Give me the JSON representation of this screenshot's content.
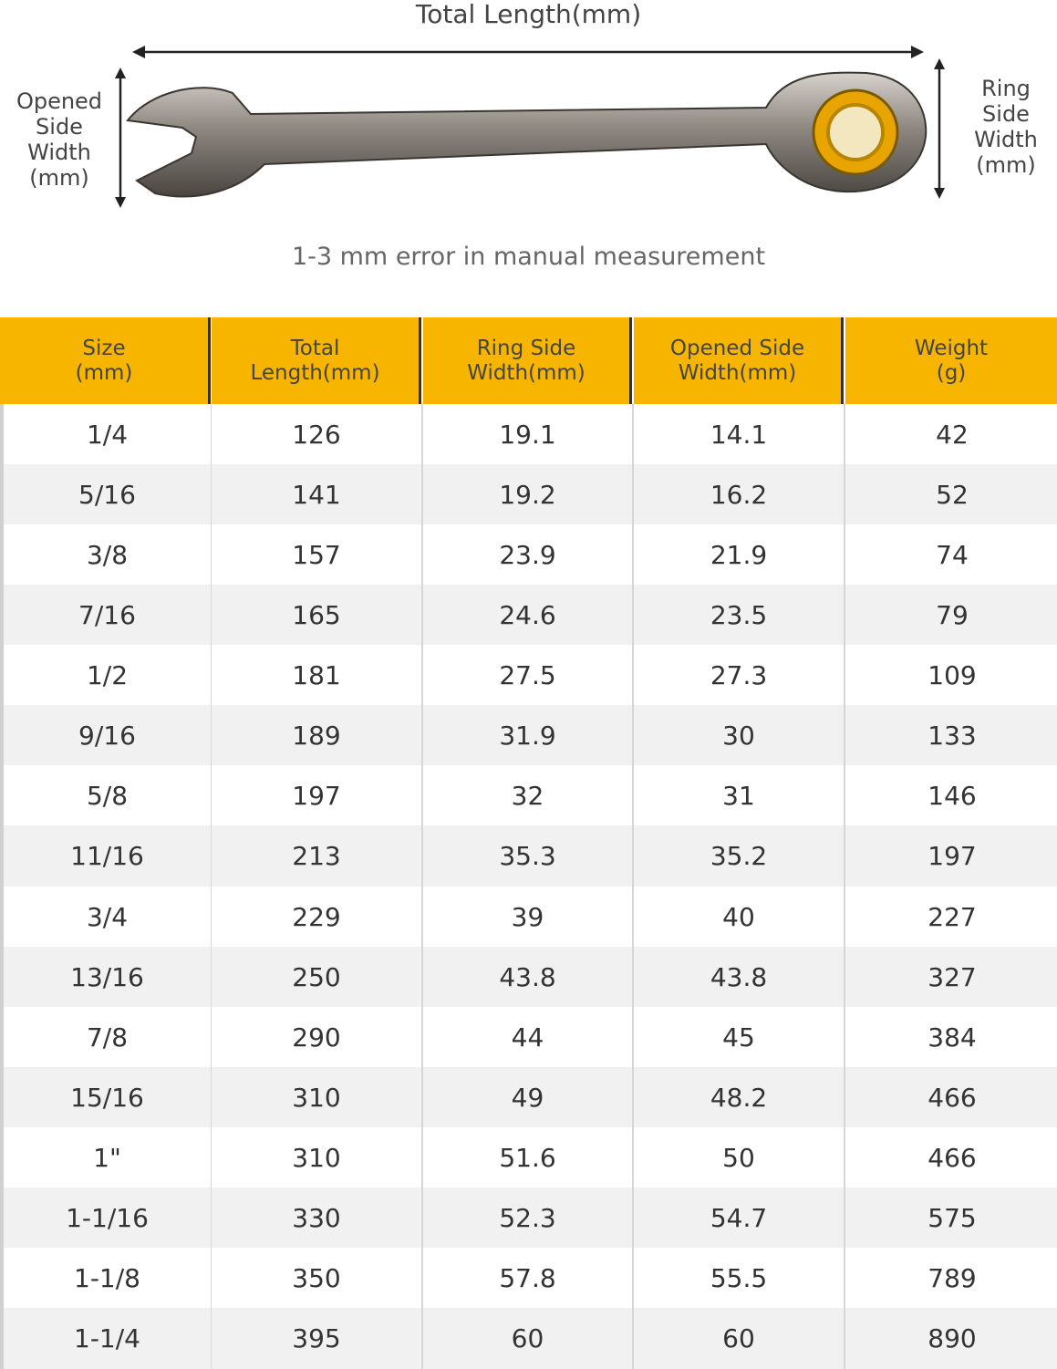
{
  "diagram": {
    "total_length": "Total Length(mm)",
    "opened_side": "Opened\nSide\nWidth\n(mm)",
    "ring_side": "Ring\nSide\nWidth\n(mm)",
    "note": "1-3 mm error in manual measurement"
  },
  "table": {
    "header": [
      "Size\n(mm)",
      "Total\nLength(mm)",
      "Ring Side\nWidth(mm)",
      "Opened Side\nWidth(mm)",
      "Weight\n(g)"
    ],
    "rows": [
      [
        "1/4",
        "126",
        "19.1",
        "14.1",
        "42"
      ],
      [
        "5/16",
        "141",
        "19.2",
        "16.2",
        "52"
      ],
      [
        "3/8",
        "157",
        "23.9",
        "21.9",
        "74"
      ],
      [
        "7/16",
        "165",
        "24.6",
        "23.5",
        "79"
      ],
      [
        "1/2",
        "181",
        "27.5",
        "27.3",
        "109"
      ],
      [
        "9/16",
        "189",
        "31.9",
        "30",
        "133"
      ],
      [
        "5/8",
        "197",
        "32",
        "31",
        "146"
      ],
      [
        "11/16",
        "213",
        "35.3",
        "35.2",
        "197"
      ],
      [
        "3/4",
        "229",
        "39",
        "40",
        "227"
      ],
      [
        "13/16",
        "250",
        "43.8",
        "43.8",
        "327"
      ],
      [
        "7/8",
        "290",
        "44",
        "45",
        "384"
      ],
      [
        "15/16",
        "310",
        "49",
        "48.2",
        "466"
      ],
      [
        "1\"",
        "310",
        "51.6",
        "50",
        "466"
      ],
      [
        "1-1/16",
        "330",
        "52.3",
        "54.7",
        "575"
      ],
      [
        "1-1/8",
        "350",
        "57.8",
        "55.5",
        "789"
      ],
      [
        "1-1/4",
        "395",
        "60",
        "60",
        "890"
      ]
    ]
  }
}
